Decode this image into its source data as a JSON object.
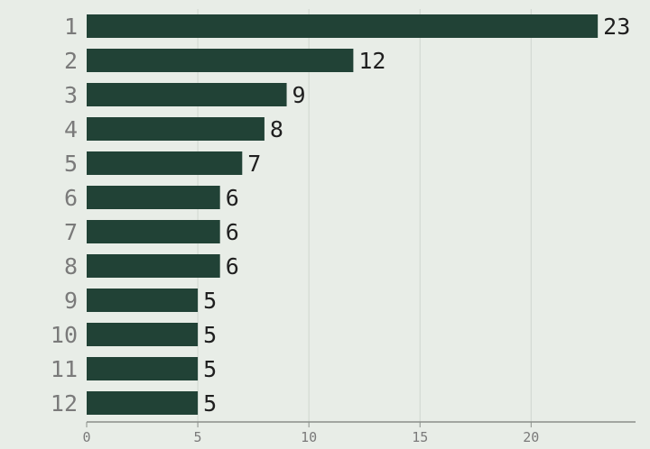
{
  "colors": {
    "background": "#e8ede7",
    "bar": "#214236",
    "grid": "#cfd6cf",
    "axis": "#8a8f8a",
    "category_text": "#7a7a7a",
    "value_text": "#1f1f1f"
  },
  "chart_data": {
    "type": "bar",
    "orientation": "horizontal",
    "categories": [
      "1",
      "2",
      "3",
      "4",
      "5",
      "6",
      "7",
      "8",
      "9",
      "10",
      "11",
      "12"
    ],
    "values": [
      23,
      12,
      9,
      8,
      7,
      6,
      6,
      6,
      5,
      5,
      5,
      5
    ],
    "value_labels": [
      "23",
      "12",
      "9",
      "8",
      "7",
      "6",
      "6",
      "6",
      "5",
      "5",
      "5",
      "5"
    ],
    "x_ticks": [
      "0",
      "5",
      "10",
      "15",
      "20"
    ],
    "x_tick_values": [
      0,
      5,
      10,
      15,
      20
    ],
    "xlim": [
      0,
      24.7
    ],
    "title": "",
    "xlabel": "",
    "ylabel": "",
    "grid": "vertical",
    "legend": "none"
  }
}
